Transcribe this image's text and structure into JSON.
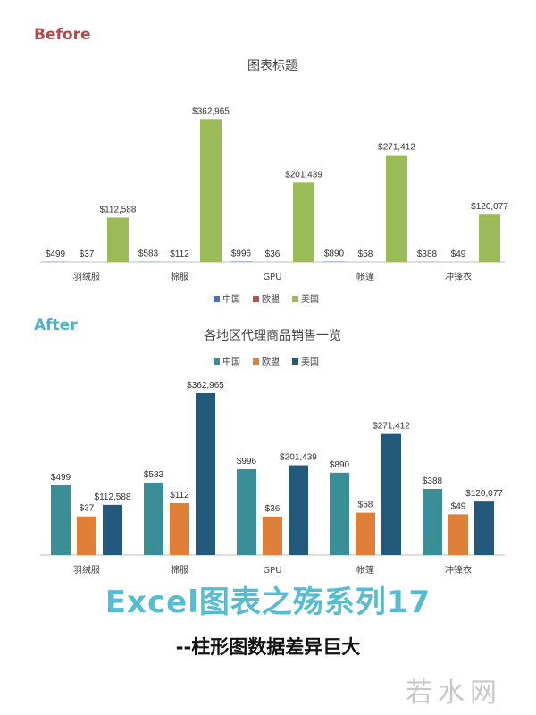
{
  "before_label": "Before",
  "after_label": "After",
  "banner": {
    "title": "Excel图表之殇系列17",
    "subtitle": "--柱形图数据差异巨大"
  },
  "watermark": "若水网",
  "chart_data": [
    {
      "type": "bar",
      "title": "图表标题",
      "categories": [
        "羽绒服",
        "棉服",
        "GPU",
        "帐篷",
        "冲锋衣"
      ],
      "series": [
        {
          "name": "中国",
          "values": [
            499,
            583,
            996,
            890,
            388
          ],
          "labels": [
            "$499",
            "$583",
            "$996",
            "$890",
            "$388"
          ]
        },
        {
          "name": "欧盟",
          "values": [
            37,
            112,
            36,
            58,
            49
          ],
          "labels": [
            "$37",
            "$112",
            "$36",
            "$58",
            "$49"
          ]
        },
        {
          "name": "美国",
          "values": [
            112588,
            362965,
            201439,
            271412,
            120077
          ],
          "labels": [
            "$112,588",
            "$362,965",
            "$201,439",
            "$271,412",
            "$120,077"
          ]
        }
      ],
      "colors": [
        "#4472c4",
        "#c0504d",
        "#9bbb59"
      ],
      "scale": "linear",
      "ylim": [
        0,
        400000
      ],
      "legend": "bottom",
      "grid": false
    },
    {
      "type": "bar",
      "title": "各地区代理商品销售一览",
      "categories": [
        "羽绒服",
        "棉服",
        "GPU",
        "帐篷",
        "冲锋衣"
      ],
      "series": [
        {
          "name": "中国",
          "values": [
            499,
            583,
            996,
            890,
            388
          ],
          "labels": [
            "$499",
            "$583",
            "$996",
            "$890",
            "$388"
          ]
        },
        {
          "name": "欧盟",
          "values": [
            37,
            112,
            36,
            58,
            49
          ],
          "labels": [
            "$37",
            "$112",
            "$36",
            "$58",
            "$49"
          ]
        },
        {
          "name": "美国",
          "values": [
            112588,
            362965,
            201439,
            271412,
            120077
          ],
          "labels": [
            "$112,588",
            "$362,965",
            "$201,439",
            "$271,412",
            "$120,077"
          ]
        }
      ],
      "colors": [
        "#3a8e97",
        "#e07f38",
        "#235a7b"
      ],
      "scale": "rank-compressed",
      "legend": "top",
      "grid": false
    }
  ]
}
